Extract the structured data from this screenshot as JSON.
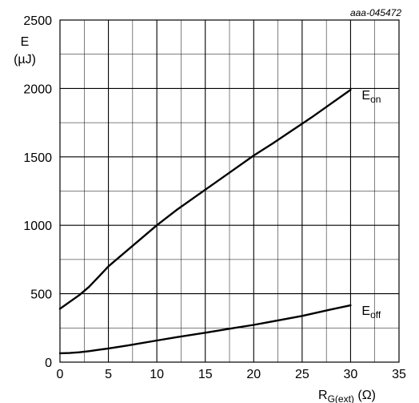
{
  "figure_id": "aaa-045472",
  "chart_data": {
    "type": "line",
    "ylabel_main": "E",
    "ylabel_unit": "(µJ)",
    "xlabel_main": "R",
    "xlabel_sub": "G(ext)",
    "xlabel_unit": " (Ω)",
    "xlim": [
      0,
      35
    ],
    "ylim": [
      0,
      2500
    ],
    "xticks": [
      0,
      5,
      10,
      15,
      20,
      25,
      30,
      35
    ],
    "yticks": [
      0,
      500,
      1000,
      1500,
      2000,
      2500
    ],
    "xtick_labels": [
      "0",
      "5",
      "10",
      "15",
      "20",
      "25",
      "30",
      "35"
    ],
    "ytick_labels": [
      "0",
      "500",
      "1000",
      "1500",
      "2000",
      "2500"
    ],
    "x_minor_grid_step": 2.5,
    "y_minor_grid_step": 250,
    "grid": true,
    "colors": {
      "line": "#000000",
      "grid": "#000000",
      "background": "#ffffff"
    },
    "series": [
      {
        "name_main": "E",
        "name_sub": "on",
        "points": [
          [
            0,
            390
          ],
          [
            1,
            440
          ],
          [
            2,
            490
          ],
          [
            3,
            550
          ],
          [
            4,
            625
          ],
          [
            5,
            700
          ],
          [
            6,
            760
          ],
          [
            7,
            820
          ],
          [
            8,
            880
          ],
          [
            9,
            940
          ],
          [
            10,
            1000
          ],
          [
            12,
            1110
          ],
          [
            14,
            1210
          ],
          [
            16,
            1310
          ],
          [
            18,
            1410
          ],
          [
            20,
            1510
          ],
          [
            22,
            1600
          ],
          [
            24,
            1695
          ],
          [
            26,
            1790
          ],
          [
            28,
            1890
          ],
          [
            30,
            1990
          ]
        ]
      },
      {
        "name_main": "E",
        "name_sub": "off",
        "points": [
          [
            0,
            65
          ],
          [
            1,
            67
          ],
          [
            2,
            72
          ],
          [
            3,
            80
          ],
          [
            4,
            90
          ],
          [
            5,
            100
          ],
          [
            7,
            122
          ],
          [
            10,
            158
          ],
          [
            12,
            182
          ],
          [
            15,
            215
          ],
          [
            18,
            250
          ],
          [
            20,
            272
          ],
          [
            22,
            298
          ],
          [
            25,
            338
          ],
          [
            28,
            385
          ],
          [
            30,
            415
          ]
        ]
      }
    ]
  }
}
